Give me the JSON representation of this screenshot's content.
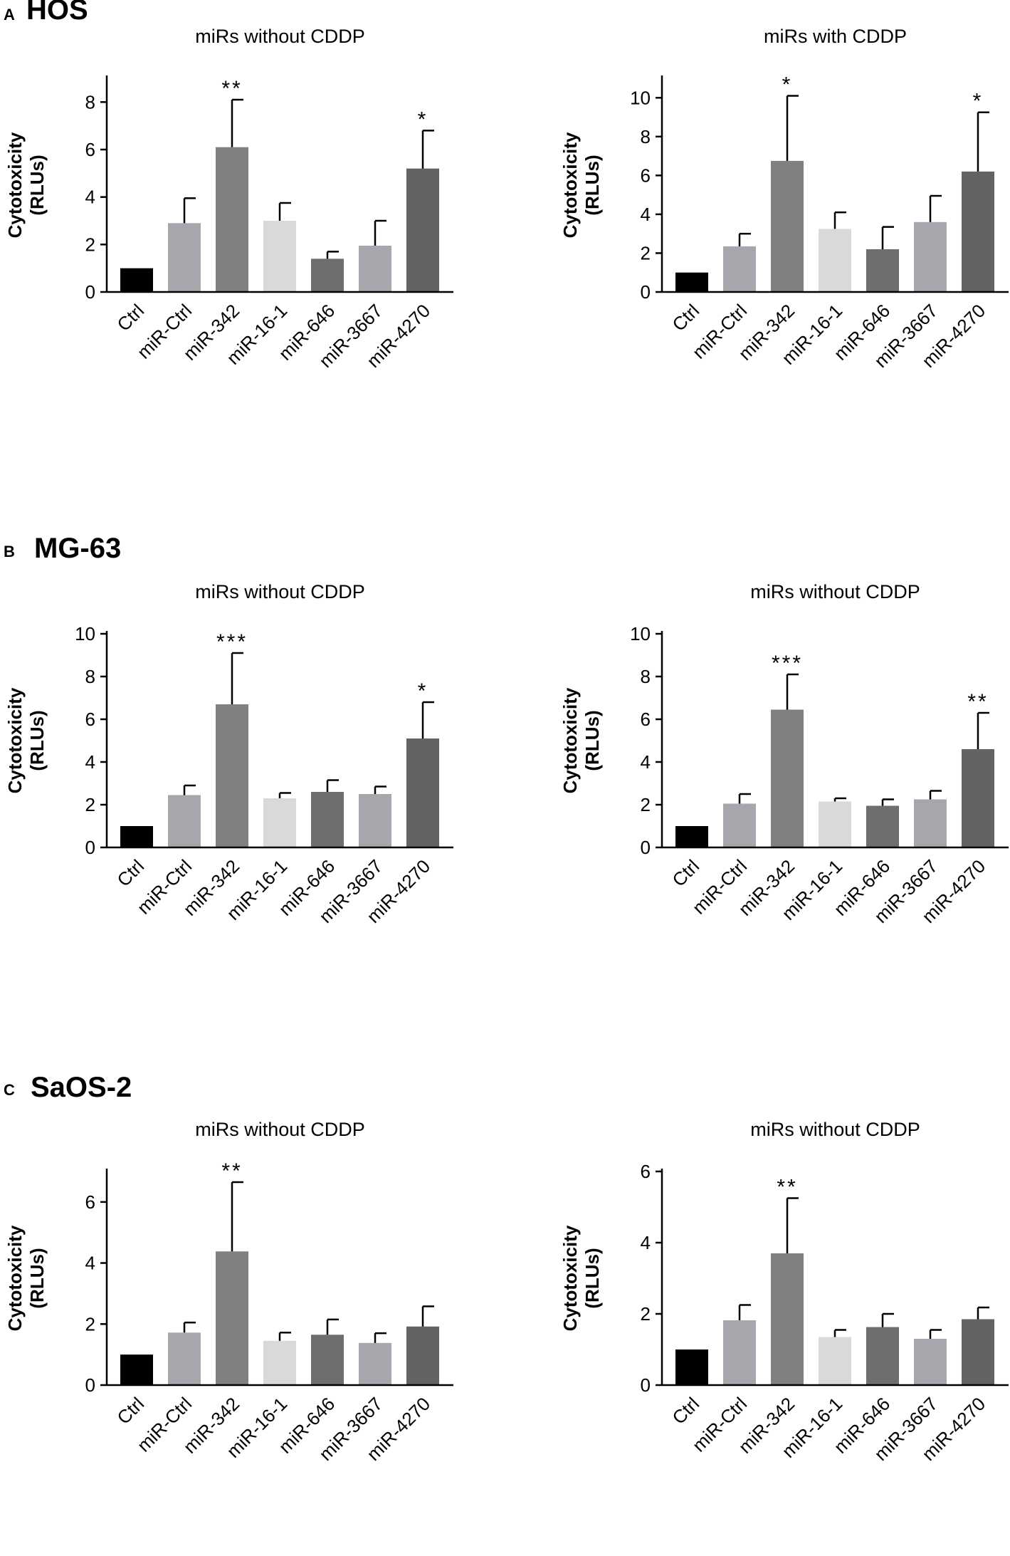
{
  "panels": [
    {
      "letter": "A",
      "name": "HOS"
    },
    {
      "letter": "B",
      "name": "MG-63"
    },
    {
      "letter": "C",
      "name": "SaOS-2"
    }
  ],
  "chart_data": [
    {
      "id": "hos-without",
      "type": "bar",
      "title": "miRs without CDDP",
      "ylabel": [
        "Cytotoxicity",
        "(RLUs)"
      ],
      "ylim": [
        0,
        9
      ],
      "yticks": [
        0,
        2,
        4,
        6,
        8
      ],
      "categories": [
        "Ctrl",
        "miR-Ctrl",
        "miR-342",
        "miR-16-1",
        "miR-646",
        "miR-3667",
        "miR-4270"
      ],
      "values": [
        1.0,
        2.9,
        6.1,
        3.0,
        1.4,
        1.95,
        5.2
      ],
      "errors": [
        0.0,
        1.05,
        2.0,
        0.75,
        0.3,
        1.05,
        1.6
      ],
      "significance": [
        "",
        "",
        "**",
        "",
        "",
        "",
        "*"
      ],
      "colors": [
        "#000000",
        "#a6a6ad",
        "#808080",
        "#d9d9d9",
        "#6e6e6e",
        "#a6a6ad",
        "#636363"
      ]
    },
    {
      "id": "hos-with",
      "type": "bar",
      "title": "miRs with CDDP",
      "ylabel": [
        "Cytotoxicity",
        "(RLUs)"
      ],
      "ylim": [
        0,
        11
      ],
      "yticks": [
        0,
        2,
        4,
        6,
        8,
        10
      ],
      "categories": [
        "Ctrl",
        "miR-Ctrl",
        "miR-342",
        "miR-16-1",
        "miR-646",
        "miR-3667",
        "miR-4270"
      ],
      "values": [
        1.0,
        2.35,
        6.75,
        3.25,
        2.2,
        3.6,
        6.2
      ],
      "errors": [
        0.0,
        0.65,
        3.35,
        0.85,
        1.15,
        1.35,
        3.05
      ],
      "significance": [
        "",
        "",
        "*",
        "",
        "",
        "",
        "*"
      ],
      "colors": [
        "#000000",
        "#a6a6ad",
        "#808080",
        "#d9d9d9",
        "#6e6e6e",
        "#a6a6ad",
        "#636363"
      ]
    },
    {
      "id": "mg63-left",
      "type": "bar",
      "title": "miRs without CDDP",
      "ylabel": [
        "Cytotoxicity",
        "(RLUs)"
      ],
      "ylim": [
        0,
        10
      ],
      "yticks": [
        0,
        2,
        4,
        6,
        8,
        10
      ],
      "categories": [
        "Ctrl",
        "miR-Ctrl",
        "miR-342",
        "miR-16-1",
        "miR-646",
        "miR-3667",
        "miR-4270"
      ],
      "values": [
        1.0,
        2.45,
        6.7,
        2.3,
        2.6,
        2.5,
        5.1
      ],
      "errors": [
        0.0,
        0.45,
        2.4,
        0.25,
        0.55,
        0.35,
        1.7
      ],
      "significance": [
        "",
        "",
        "***",
        "",
        "",
        "",
        "*"
      ],
      "colors": [
        "#000000",
        "#a6a6ad",
        "#808080",
        "#d9d9d9",
        "#6e6e6e",
        "#a6a6ad",
        "#636363"
      ]
    },
    {
      "id": "mg63-right",
      "type": "bar",
      "title": "miRs without CDDP",
      "ylabel": [
        "Cytotoxicity",
        "(RLUs)"
      ],
      "ylim": [
        0,
        10
      ],
      "yticks": [
        0,
        2,
        4,
        6,
        8,
        10
      ],
      "categories": [
        "Ctrl",
        "miR-Ctrl",
        "miR-342",
        "miR-16-1",
        "miR-646",
        "miR-3667",
        "miR-4270"
      ],
      "values": [
        1.0,
        2.05,
        6.45,
        2.15,
        1.95,
        2.25,
        4.6
      ],
      "errors": [
        0.0,
        0.45,
        1.65,
        0.15,
        0.3,
        0.4,
        1.7
      ],
      "significance": [
        "",
        "",
        "***",
        "",
        "",
        "",
        "**"
      ],
      "colors": [
        "#000000",
        "#a6a6ad",
        "#808080",
        "#d9d9d9",
        "#6e6e6e",
        "#a6a6ad",
        "#636363"
      ]
    },
    {
      "id": "saos2-left",
      "type": "bar",
      "title": "miRs without CDDP",
      "ylabel": [
        "Cytotoxicity",
        "(RLUs)"
      ],
      "ylim": [
        0,
        7
      ],
      "yticks": [
        0,
        2,
        4,
        6
      ],
      "categories": [
        "Ctrl",
        "miR-Ctrl",
        "miR-342",
        "miR-16-1",
        "miR-646",
        "miR-3667",
        "miR-4270"
      ],
      "values": [
        1.0,
        1.72,
        4.38,
        1.45,
        1.65,
        1.38,
        1.92
      ],
      "errors": [
        0.0,
        0.33,
        2.27,
        0.27,
        0.5,
        0.32,
        0.66
      ],
      "significance": [
        "",
        "",
        "**",
        "",
        "",
        "",
        ""
      ],
      "colors": [
        "#000000",
        "#a6a6ad",
        "#808080",
        "#d9d9d9",
        "#6e6e6e",
        "#a6a6ad",
        "#636363"
      ]
    },
    {
      "id": "saos2-right",
      "type": "bar",
      "title": "miRs without CDDP",
      "ylabel": [
        "Cytotoxicity",
        "(RLUs)"
      ],
      "ylim": [
        0,
        6
      ],
      "yticks": [
        0,
        2,
        4,
        6
      ],
      "categories": [
        "Ctrl",
        "miR-Ctrl",
        "miR-342",
        "miR-16-1",
        "miR-646",
        "miR-3667",
        "miR-4270"
      ],
      "values": [
        1.0,
        1.82,
        3.7,
        1.35,
        1.63,
        1.3,
        1.85
      ],
      "errors": [
        0.0,
        0.43,
        1.55,
        0.2,
        0.37,
        0.25,
        0.33
      ],
      "significance": [
        "",
        "",
        "**",
        "",
        "",
        "",
        ""
      ],
      "colors": [
        "#000000",
        "#a6a6ad",
        "#808080",
        "#d9d9d9",
        "#6e6e6e",
        "#a6a6ad",
        "#636363"
      ]
    }
  ]
}
